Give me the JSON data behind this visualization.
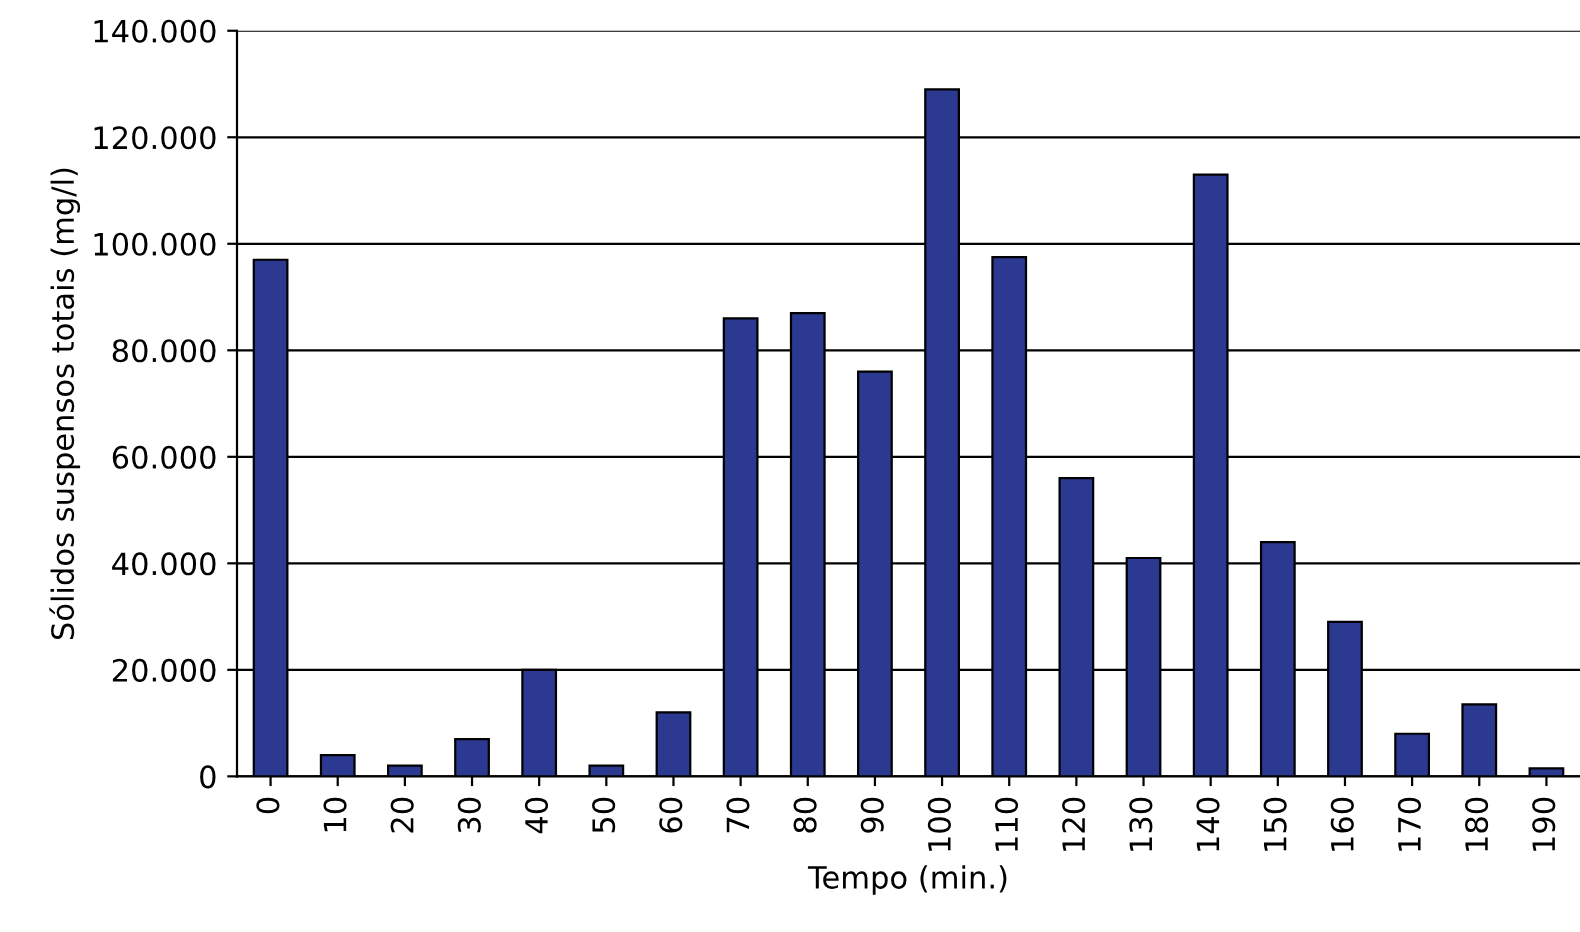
{
  "chart_data": {
    "type": "bar",
    "xlabel": "Tempo (min.)",
    "ylabel": "Sólidos suspensos totais (mg/l)",
    "categories": [
      "0",
      "10",
      "20",
      "30",
      "40",
      "50",
      "60",
      "70",
      "80",
      "90",
      "100",
      "110",
      "120",
      "130",
      "140",
      "150",
      "160",
      "170",
      "180",
      "190"
    ],
    "values": [
      97000,
      4000,
      2000,
      7000,
      20000,
      2000,
      12000,
      86000,
      87000,
      76000,
      129000,
      97500,
      56000,
      41000,
      113000,
      44000,
      29000,
      8000,
      13500,
      1500
    ],
    "color": "#2b3990",
    "ylim": [
      0,
      140000
    ],
    "yticks": [
      {
        "value": 0,
        "label": "0"
      },
      {
        "value": 20000,
        "label": "20.000"
      },
      {
        "value": 40000,
        "label": "40.000"
      },
      {
        "value": 60000,
        "label": "60.000"
      },
      {
        "value": 80000,
        "label": "80.000"
      },
      {
        "value": 100000,
        "label": "100.000"
      },
      {
        "value": 120000,
        "label": "120.000"
      },
      {
        "value": 140000,
        "label": "140.000"
      }
    ],
    "grid": "y",
    "legend": false
  }
}
